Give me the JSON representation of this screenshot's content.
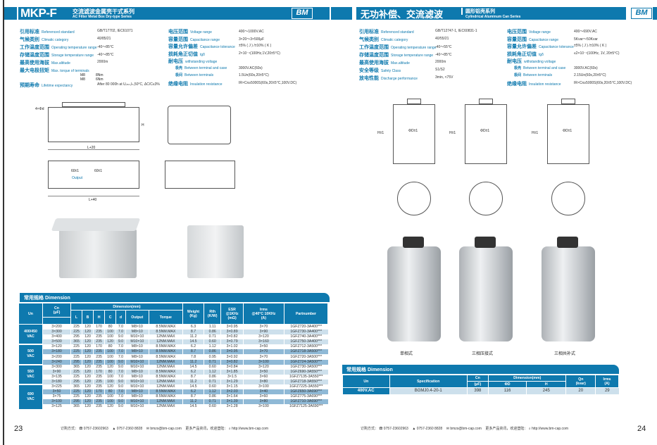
{
  "left": {
    "title": "MKP-F",
    "title_cn": "交流滤波金属壳干式系列",
    "title_en": "AC Filter Metal Box Dry-type Series",
    "logo": "BM",
    "specs_left": [
      {
        "cn": "引用标准",
        "en": "Referenced standard",
        "val": "GB/T17702, IEC61071"
      },
      {
        "cn": "气候类别",
        "en": "Climatic category",
        "val": "40/85/21"
      },
      {
        "cn": "工作温度范围",
        "en": "Operating temperature range",
        "val": "-40～85°C"
      },
      {
        "cn": "存储温度范围",
        "en": "Storage temperature range",
        "val": "-40～85°C"
      },
      {
        "cn": "最高使用海拔",
        "en": "Max.altitude",
        "val": "2000m"
      },
      {
        "cn": "最大电极扭矩",
        "en": "Max. torque of terminals",
        "val": ""
      },
      {
        "cn": "预期寿命",
        "en": "Lifetime expectancy",
        "val": "After 80 000h at Uᵣₘₛ,Iₙ,50°C, ΔC/C≤3%"
      }
    ],
    "torque": [
      {
        "k": "M8",
        "v": "8Nm"
      },
      {
        "k": "M8",
        "v": "6Nm"
      }
    ],
    "specs_right": [
      {
        "cn": "电压范围",
        "en": "Voltage range",
        "val": "400～1000V.AC"
      },
      {
        "cn": "容量范围",
        "en": "Capacitance range",
        "val": "3×20～3×500μF"
      },
      {
        "cn": "容量允许偏差",
        "en": "Capacitance tolerance",
        "val": "±5% ( J ) /±10% ( K )"
      },
      {
        "cn": "损耗角正切值",
        "en": "tgδ",
        "val": "2×10⁻⁴(100Hz,1V,20±5°C)"
      },
      {
        "cn": "耐电压",
        "en": "withstanding voltage",
        "val": ""
      },
      {
        "cn": "极壳",
        "en": "Between terminal and case",
        "val": "3000V.AC(60s)"
      },
      {
        "cn": "极间",
        "en": "Between terminals",
        "val": "1.5Un(60s,20±5°C)"
      },
      {
        "cn": "绝缘电阻",
        "en": "Insulation resistance",
        "val": "IR×Cn≥5000S(60s,20±5°C,100V.DC)"
      }
    ],
    "drawing_labels": {
      "L20": "L+20",
      "L40": "L+40",
      "L": "L",
      "output": "Output",
      "p1": "60±1",
      "p2": "60±1",
      "d": "4×Φd",
      "H": "H",
      "B": "B"
    },
    "dimension_title": "常用规格 Dimension",
    "headers": {
      "un": "Un",
      "cn": "Cn",
      "cn_unit": "(μF)",
      "dim": "Dimension(mm)",
      "L": "L",
      "B": "B",
      "H": "H",
      "C": "C",
      "d": "d",
      "output": "Output",
      "torque": "Torque",
      "weight": "Weight",
      "weight_unit": "(Kg)",
      "rth": "Rth",
      "rth_unit": "(K/W)",
      "esr": "ESR",
      "esr_sub": "@1KHz",
      "esr_unit": "(mΩ)",
      "irms": "Irms",
      "irms_sub": "@40°C 10KHz",
      "irms_unit": "(A)",
      "part": "Partnumber"
    },
    "groups": [
      {
        "un": "400/450",
        "unit": "VAC",
        "rows": [
          [
            "3×200",
            "225",
            "120",
            "170",
            "80",
            "7.0",
            "M8×10",
            "8.5NM.MAX",
            "6.3",
            "1.11",
            "3×0.95",
            "3×70",
            "1GFZ720-3A400***"
          ],
          [
            "3×300",
            "225",
            "120",
            "235",
            "100",
            "7.0",
            "M8×10",
            "8.5NM.MAX",
            "8.7",
            "0.86",
            "3×0.89",
            "3×90",
            "1GFZ730-3A400***"
          ],
          [
            "3×400",
            "295",
            "120",
            "235",
            "100",
            "9.0",
            "M10×10",
            "12NM.MAX",
            "11.2",
            "0.71",
            "3×0.82",
            "3×120",
            "1GFZ740-3A400***"
          ],
          [
            "3×500",
            "365",
            "120",
            "235",
            "120",
            "9.0",
            "M10×10",
            "12NM.MAX",
            "14.5",
            "0.60",
            "3×0.79",
            "3×160",
            "1GFZ750-3A400***"
          ]
        ]
      },
      {
        "un": "500",
        "unit": "VAC",
        "rows": [
          [
            "3×120",
            "225",
            "120",
            "170",
            "80",
            "7.0",
            "M8×10",
            "8.5NM.MAX",
            "6.2",
            "1.12",
            "3×1.02",
            "3×50",
            "1GFZ712-3A500***"
          ],
          [
            "3×180",
            "225",
            "120",
            "235",
            "100",
            "7.0",
            "M8×10",
            "8.5NM.MAX",
            "8.7",
            "0.86",
            "3×0.95",
            "3×70",
            "1GFZ718-3A500***"
          ],
          [
            "3×200",
            "225",
            "120",
            "235",
            "100",
            "7.0",
            "M8×10",
            "8.5NM.MAX",
            "7.8",
            "0.95",
            "3×0.92",
            "3×70",
            "1GFZ720-3A500***"
          ],
          [
            "3×240",
            "295",
            "120",
            "235",
            "100",
            "9.0",
            "M10×10",
            "12NM.MAX",
            "11.2",
            "0.71",
            "3×0.82",
            "3×100",
            "1GFZ724-3A500***"
          ]
        ]
      },
      {
        "un": "550",
        "unit": "VAC",
        "rows": [
          [
            "3×300",
            "365",
            "120",
            "235",
            "120",
            "9.0",
            "M10×10",
            "12NM.MAX",
            "14.5",
            "0.60",
            "3×0.84",
            "3×120",
            "1GFZ730-3A500***"
          ],
          [
            "3×90",
            "225",
            "120",
            "170",
            "80",
            "7.0",
            "M8×10",
            "8.5NM.MAX",
            "6.2",
            "1.12",
            "3×1.85",
            "3×50",
            "1GFZ690-3A550***"
          ],
          [
            "3×135",
            "225",
            "120",
            "235",
            "100",
            "7.0",
            "M8×10",
            "8.5NM.MAX",
            "8.7",
            "0.86",
            "3×1.5",
            "3×60",
            "1GFZ7135-3A550***"
          ],
          [
            "3×180",
            "295",
            "120",
            "235",
            "100",
            "9.0",
            "M10×10",
            "12NM.MAX",
            "11.2",
            "0.71",
            "3×1.29",
            "3×80",
            "1GFZ718-3A550***"
          ]
        ]
      },
      {
        "un": "690",
        "unit": "VAC",
        "rows": [
          [
            "3×225",
            "365",
            "120",
            "235",
            "120",
            "9.0",
            "M10×10",
            "12NM.MAX",
            "14.5",
            "0.60",
            "3×1.15",
            "3×100",
            "1GFZ7225-3A550***"
          ],
          [
            "3×50",
            "225",
            "120",
            "170",
            "80",
            "7.0",
            "M8×10",
            "8.5NM.MAX",
            "6.2",
            "1.12",
            "3×2.03",
            "3×40",
            "1GFZ650-3A690***"
          ],
          [
            "3×75",
            "225",
            "120",
            "235",
            "100",
            "7.0",
            "M8×10",
            "8.5NM.MAX",
            "8.7",
            "0.86",
            "3×1.64",
            "3×60",
            "1GFZ775-3A690***"
          ],
          [
            "3×100",
            "295",
            "120",
            "235",
            "100",
            "9.0",
            "M10×10",
            "12NM.MAX",
            "11.2",
            "0.71",
            "3×1.39",
            "3×80",
            "1GFZ710-3A690***"
          ],
          [
            "3×125",
            "365",
            "120",
            "235",
            "120",
            "9.0",
            "M10×10",
            "12NM.MAX",
            "14.5",
            "0.60",
            "3×1.28",
            "3×100",
            "1GFZ7125-3A690***"
          ]
        ]
      }
    ],
    "page_number": "23"
  },
  "right": {
    "title_cn": "无功补偿、交流滤波",
    "sub_cn": "圆形铝壳系列",
    "sub_en": "Cylindrical Aluminum Can Series",
    "logo": "BM",
    "specs_left": [
      {
        "cn": "引用标准",
        "en": "Referenced standard",
        "val": "GB/T12747-1, IEC60831-1"
      },
      {
        "cn": "气候类别",
        "en": "Climatic category",
        "val": "40/55/21"
      },
      {
        "cn": "工作温度范围",
        "en": "Operating temperature range",
        "val": "-40～55°C"
      },
      {
        "cn": "存储温度范围",
        "en": "Storage temperature range",
        "val": "-40～85°C"
      },
      {
        "cn": "最高使用海拔",
        "en": "Max.altitude",
        "val": "2000m"
      },
      {
        "cn": "安全等级",
        "en": "Safety Class",
        "val": "S1/S2"
      },
      {
        "cn": "放电性能",
        "en": "Discharge performance",
        "val": "3min, <75V"
      }
    ],
    "specs_right": [
      {
        "cn": "电压范围",
        "en": "Voltage range",
        "val": "400～690V.AC"
      },
      {
        "cn": "容量范围",
        "en": "Capacitance range",
        "val": "5Kvar～50Kvar"
      },
      {
        "cn": "容量允许偏差",
        "en": "Capacitance tolerance",
        "val": "±5% ( J ) /±10% ( K )"
      },
      {
        "cn": "损耗角正切值",
        "en": "tgδ",
        "val": "≤2×10⁻⁴(100Hz, 1V, 20±5°C)"
      },
      {
        "cn": "耐电压",
        "en": "withstanding voltage",
        "val": ""
      },
      {
        "cn": "极壳",
        "en": "Between terminal and case",
        "val": "3000V.AC(60s)"
      },
      {
        "cn": "极间",
        "en": "Between terminals",
        "val": "2.15Un(60s,20±5°C)"
      },
      {
        "cn": "绝缘电阻",
        "en": "Insulation resistance",
        "val": "IR×Cn≥5000S(60s,20±5°C,100V.DC)"
      }
    ],
    "drawing_labels": {
      "d": "ΦD±1",
      "h": "H±1"
    },
    "product_labels": [
      "单相式",
      "三相压接式",
      "三相共补式"
    ],
    "dimension_title": "常用规格 Dimension",
    "headers": {
      "un": "Un",
      "spec": "Specification",
      "cn": "Cn",
      "cn_unit": "(μF)",
      "dim": "Dimension(mm)",
      "od": "ΦD",
      "h": "H",
      "qn": "Qn",
      "qn_unit": "(kvar)",
      "irms": "Irms",
      "irms_unit": "(A)"
    },
    "rows": [
      [
        "400V.AC",
        "BGMJ0.4-20-1",
        "398",
        "116",
        "245",
        "20",
        "29"
      ]
    ],
    "page_number": "24"
  },
  "footer": {
    "order": "订购方式：",
    "tel": "0757-23602963",
    "fax": "0757-2360 8828",
    "email": "bmzs@bm-cap.com",
    "more": "更多产品资讯，欢迎登陆：",
    "url": "http://www.bm-cap.com"
  },
  "colors": {
    "accent": "#0e79ae",
    "row_light": "#cde0ec",
    "row_dark": "#8fb9d6"
  }
}
